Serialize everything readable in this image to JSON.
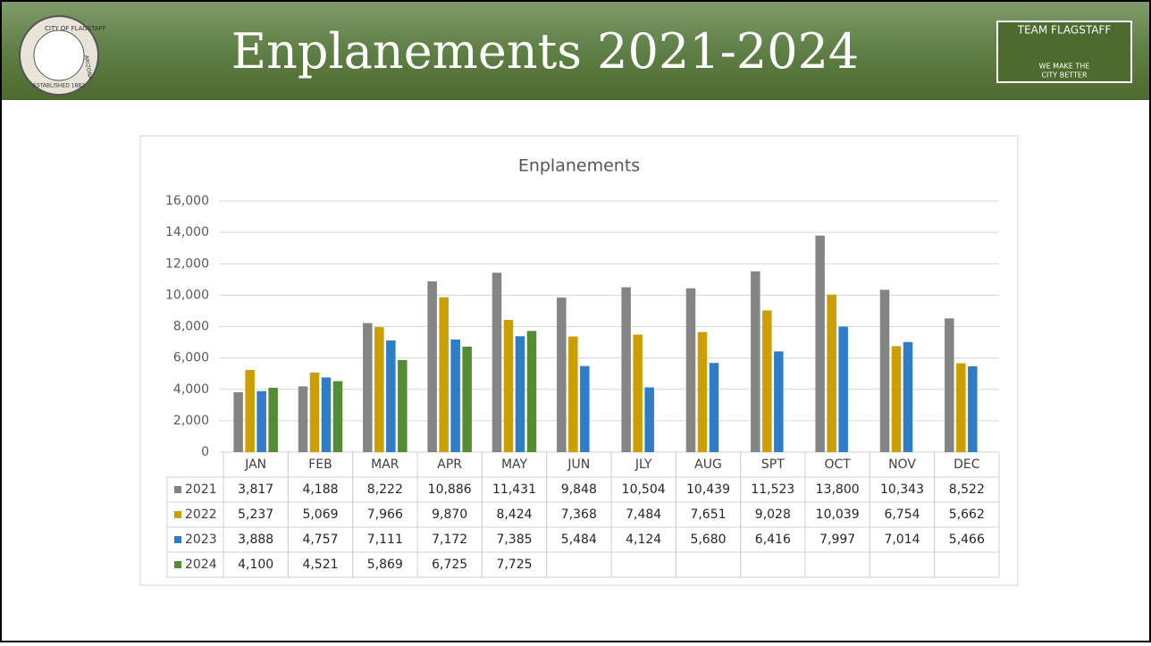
{
  "header": {
    "title": "Enplanements 2021-2024",
    "seal": {
      "top": "CITY OF FLAGSTAFF",
      "right": "ARIZONA",
      "bottom": "ESTABLISHED 1882"
    },
    "logo": {
      "name": "TEAM FLAGSTAFF",
      "tagline1": "WE MAKE THE",
      "tagline2": "CITY BETTER"
    }
  },
  "chart_data": {
    "type": "bar",
    "title": "Enplanements",
    "categories": [
      "JAN",
      "FEB",
      "MAR",
      "APR",
      "MAY",
      "JUN",
      "JLY",
      "AUG",
      "SPT",
      "OCT",
      "NOV",
      "DEC"
    ],
    "series": [
      {
        "name": "2021",
        "color": "#848484",
        "values": [
          3817,
          4188,
          8222,
          10886,
          11431,
          9848,
          10504,
          10439,
          11523,
          13800,
          10343,
          8522
        ],
        "value_labels": [
          "3,817",
          "4,188",
          "8,222",
          "10,886",
          "11,431",
          "9,848",
          "10,504",
          "10,439",
          "11,523",
          "13,800",
          "10,343",
          "8,522"
        ]
      },
      {
        "name": "2022",
        "color": "#cc9f00",
        "values": [
          5237,
          5069,
          7966,
          9870,
          8424,
          7368,
          7484,
          7651,
          9028,
          10039,
          6754,
          5662
        ],
        "value_labels": [
          "5,237",
          "5,069",
          "7,966",
          "9,870",
          "8,424",
          "7,368",
          "7,484",
          "7,651",
          "9,028",
          "10,039",
          "6,754",
          "5,662"
        ]
      },
      {
        "name": "2023",
        "color": "#2f7cc8",
        "values": [
          3888,
          4757,
          7111,
          7172,
          7385,
          5484,
          4124,
          5680,
          6416,
          7997,
          7014,
          5466
        ],
        "value_labels": [
          "3,888",
          "4,757",
          "7,111",
          "7,172",
          "7,385",
          "5,484",
          "4,124",
          "5,680",
          "6,416",
          "7,997",
          "7,014",
          "5,466"
        ]
      },
      {
        "name": "2024",
        "color": "#548c34",
        "values": [
          4100,
          4521,
          5869,
          6725,
          7725,
          null,
          null,
          null,
          null,
          null,
          null,
          null
        ],
        "value_labels": [
          "4,100",
          "4,521",
          "5,869",
          "6,725",
          "7,725",
          null,
          null,
          null,
          null,
          null,
          null,
          null
        ]
      }
    ],
    "ylim": [
      0,
      16000
    ],
    "yticks": [
      0,
      {
        "value": 2000,
        "label": "2,000"
      },
      {
        "value": 4000,
        "label": "4,000"
      },
      {
        "value": 6000,
        "label": "6,000"
      },
      {
        "value": 8000,
        "label": "8,000"
      },
      {
        "value": 10000,
        "label": "10,000"
      },
      {
        "value": 12000,
        "label": "12,000"
      },
      {
        "value": 14000,
        "label": "14,000"
      },
      {
        "value": 16000,
        "label": "16,000"
      }
    ],
    "grid": true
  }
}
